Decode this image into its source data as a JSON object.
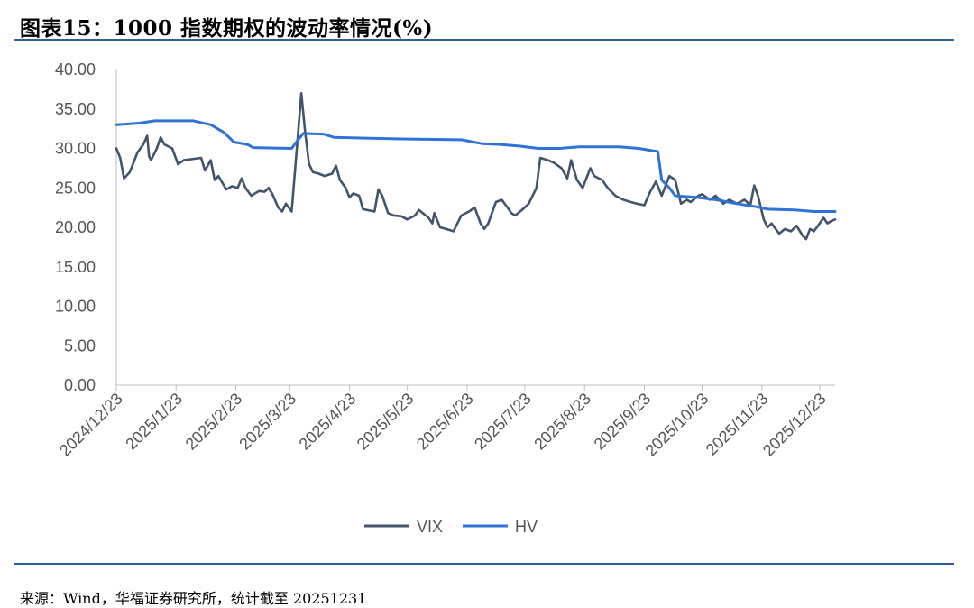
{
  "header": {
    "title": "图表15：1000 指数期权的波动率情况(%)"
  },
  "footer": {
    "source": "来源：Wind，华福证券研究所，统计截至 20251231"
  },
  "colors": {
    "vix": "#44546a",
    "hv": "#2f73d6",
    "rule": "#2e5f9e",
    "axis": "#bfbfbf",
    "tick_text": "#555555"
  },
  "chart_data": {
    "type": "line",
    "title": "图表15：1000 指数期权的波动率情况(%)",
    "xlabel": "",
    "ylabel": "",
    "ylim": [
      0,
      40
    ],
    "y_ticks": [
      "0.00",
      "5.00",
      "10.00",
      "15.00",
      "20.00",
      "25.00",
      "30.00",
      "35.00",
      "40.00"
    ],
    "x_ticks": [
      "2024/12/23",
      "2025/1/23",
      "2025/2/23",
      "2025/3/23",
      "2025/4/23",
      "2025/5/23",
      "2025/6/23",
      "2025/7/23",
      "2025/8/23",
      "2025/9/23",
      "2025/10/23",
      "2025/11/23",
      "2025/12/23"
    ],
    "x_range": [
      "2024/12/23",
      "2025/12/31"
    ],
    "grid": false,
    "legend": "bottom",
    "series": [
      {
        "name": "VIX",
        "points": [
          [
            "2024-12-23",
            30.0
          ],
          [
            "2024-12-25",
            28.8
          ],
          [
            "2024-12-27",
            26.2
          ],
          [
            "2024-12-30",
            27.0
          ],
          [
            "2025-01-03",
            29.5
          ],
          [
            "2025-01-06",
            30.5
          ],
          [
            "2025-01-08",
            31.6
          ],
          [
            "2025-01-09",
            29.0
          ],
          [
            "2025-01-10",
            28.5
          ],
          [
            "2025-01-13",
            30.0
          ],
          [
            "2025-01-15",
            31.4
          ],
          [
            "2025-01-17",
            30.5
          ],
          [
            "2025-01-21",
            30.0
          ],
          [
            "2025-01-24",
            28.0
          ],
          [
            "2025-01-27",
            28.5
          ],
          [
            "2025-02-05",
            28.8
          ],
          [
            "2025-02-07",
            27.2
          ],
          [
            "2025-02-10",
            28.5
          ],
          [
            "2025-02-12",
            26.0
          ],
          [
            "2025-02-14",
            26.5
          ],
          [
            "2025-02-18",
            24.8
          ],
          [
            "2025-02-21",
            25.2
          ],
          [
            "2025-02-24",
            25.0
          ],
          [
            "2025-02-26",
            26.2
          ],
          [
            "2025-02-28",
            25.0
          ],
          [
            "2025-03-03",
            24.0
          ],
          [
            "2025-03-05",
            24.3
          ],
          [
            "2025-03-07",
            24.6
          ],
          [
            "2025-03-10",
            24.5
          ],
          [
            "2025-03-12",
            25.0
          ],
          [
            "2025-03-14",
            24.2
          ],
          [
            "2025-03-17",
            22.5
          ],
          [
            "2025-03-19",
            22.0
          ],
          [
            "2025-03-21",
            23.0
          ],
          [
            "2025-03-24",
            22.0
          ],
          [
            "2025-03-26",
            28.0
          ],
          [
            "2025-03-28",
            34.0
          ],
          [
            "2025-03-29",
            37.0
          ],
          [
            "2025-03-31",
            32.0
          ],
          [
            "2025-04-02",
            28.0
          ],
          [
            "2025-04-04",
            27.0
          ],
          [
            "2025-04-07",
            26.8
          ],
          [
            "2025-04-10",
            26.5
          ],
          [
            "2025-04-14",
            26.8
          ],
          [
            "2025-04-16",
            27.8
          ],
          [
            "2025-04-18",
            26.0
          ],
          [
            "2025-04-21",
            25.0
          ],
          [
            "2025-04-23",
            23.8
          ],
          [
            "2025-04-25",
            24.3
          ],
          [
            "2025-04-28",
            24.0
          ],
          [
            "2025-04-30",
            22.3
          ],
          [
            "2025-05-06",
            22.0
          ],
          [
            "2025-05-08",
            24.8
          ],
          [
            "2025-05-10",
            24.0
          ],
          [
            "2025-05-13",
            21.8
          ],
          [
            "2025-05-16",
            21.5
          ],
          [
            "2025-05-20",
            21.4
          ],
          [
            "2025-05-23",
            21.0
          ],
          [
            "2025-05-27",
            21.5
          ],
          [
            "2025-05-29",
            22.2
          ],
          [
            "2025-06-03",
            21.2
          ],
          [
            "2025-06-05",
            20.5
          ],
          [
            "2025-06-06",
            21.8
          ],
          [
            "2025-06-09",
            20.0
          ],
          [
            "2025-06-12",
            19.8
          ],
          [
            "2025-06-16",
            19.5
          ],
          [
            "2025-06-18",
            20.5
          ],
          [
            "2025-06-20",
            21.5
          ],
          [
            "2025-06-24",
            22.0
          ],
          [
            "2025-06-27",
            22.5
          ],
          [
            "2025-06-30",
            20.5
          ],
          [
            "2025-07-02",
            19.8
          ],
          [
            "2025-07-04",
            20.5
          ],
          [
            "2025-07-08",
            23.2
          ],
          [
            "2025-07-11",
            23.5
          ],
          [
            "2025-07-14",
            22.5
          ],
          [
            "2025-07-16",
            21.8
          ],
          [
            "2025-07-18",
            21.5
          ],
          [
            "2025-07-22",
            22.3
          ],
          [
            "2025-07-25",
            23.0
          ],
          [
            "2025-07-29",
            25.0
          ],
          [
            "2025-07-31",
            28.8
          ],
          [
            "2025-08-04",
            28.5
          ],
          [
            "2025-08-07",
            28.2
          ],
          [
            "2025-08-11",
            27.5
          ],
          [
            "2025-08-14",
            26.2
          ],
          [
            "2025-08-16",
            28.5
          ],
          [
            "2025-08-19",
            26.0
          ],
          [
            "2025-08-22",
            25.0
          ],
          [
            "2025-08-26",
            27.5
          ],
          [
            "2025-08-28",
            26.5
          ],
          [
            "2025-09-01",
            26.0
          ],
          [
            "2025-09-04",
            25.0
          ],
          [
            "2025-09-08",
            24.0
          ],
          [
            "2025-09-12",
            23.5
          ],
          [
            "2025-09-16",
            23.2
          ],
          [
            "2025-09-19",
            23.0
          ],
          [
            "2025-09-23",
            22.8
          ],
          [
            "2025-09-26",
            24.5
          ],
          [
            "2025-09-29",
            25.8
          ],
          [
            "2025-10-02",
            24.0
          ],
          [
            "2025-10-06",
            26.5
          ],
          [
            "2025-10-09",
            26.0
          ],
          [
            "2025-10-12",
            23.0
          ],
          [
            "2025-10-15",
            23.5
          ],
          [
            "2025-10-17",
            23.2
          ],
          [
            "2025-10-21",
            24.0
          ],
          [
            "2025-10-23",
            24.2
          ],
          [
            "2025-10-27",
            23.5
          ],
          [
            "2025-10-30",
            24.0
          ],
          [
            "2025-11-03",
            23.0
          ],
          [
            "2025-11-06",
            23.5
          ],
          [
            "2025-11-10",
            23.0
          ],
          [
            "2025-11-14",
            23.5
          ],
          [
            "2025-11-17",
            22.8
          ],
          [
            "2025-11-19",
            25.3
          ],
          [
            "2025-11-21",
            24.0
          ],
          [
            "2025-11-24",
            21.0
          ],
          [
            "2025-11-26",
            20.0
          ],
          [
            "2025-11-28",
            20.5
          ],
          [
            "2025-12-02",
            19.2
          ],
          [
            "2025-12-05",
            19.8
          ],
          [
            "2025-12-08",
            19.5
          ],
          [
            "2025-12-11",
            20.2
          ],
          [
            "2025-12-14",
            19.0
          ],
          [
            "2025-12-16",
            18.5
          ],
          [
            "2025-12-18",
            19.8
          ],
          [
            "2025-12-20",
            19.5
          ],
          [
            "2025-12-23",
            20.5
          ],
          [
            "2025-12-25",
            21.2
          ],
          [
            "2025-12-27",
            20.5
          ],
          [
            "2025-12-29",
            20.8
          ],
          [
            "2025-12-31",
            21.0
          ]
        ]
      },
      {
        "name": "HV",
        "points": [
          [
            "2024-12-23",
            33.0
          ],
          [
            "2025-01-04",
            33.2
          ],
          [
            "2025-01-12",
            33.5
          ],
          [
            "2025-02-01",
            33.5
          ],
          [
            "2025-02-10",
            33.0
          ],
          [
            "2025-02-17",
            32.0
          ],
          [
            "2025-02-22",
            30.8
          ],
          [
            "2025-03-01",
            30.5
          ],
          [
            "2025-03-04",
            30.1
          ],
          [
            "2025-03-24",
            30.0
          ],
          [
            "2025-03-27",
            31.0
          ],
          [
            "2025-03-30",
            31.9
          ],
          [
            "2025-04-10",
            31.8
          ],
          [
            "2025-04-15",
            31.4
          ],
          [
            "2025-05-01",
            31.3
          ],
          [
            "2025-05-20",
            31.2
          ],
          [
            "2025-06-20",
            31.1
          ],
          [
            "2025-07-01",
            30.6
          ],
          [
            "2025-07-10",
            30.5
          ],
          [
            "2025-07-20",
            30.3
          ],
          [
            "2025-07-30",
            30.0
          ],
          [
            "2025-08-10",
            30.0
          ],
          [
            "2025-08-20",
            30.2
          ],
          [
            "2025-09-10",
            30.2
          ],
          [
            "2025-09-20",
            30.0
          ],
          [
            "2025-09-30",
            29.6
          ],
          [
            "2025-10-02",
            26.0
          ],
          [
            "2025-10-06",
            25.0
          ],
          [
            "2025-10-09",
            24.0
          ],
          [
            "2025-10-20",
            23.8
          ],
          [
            "2025-10-30",
            23.5
          ],
          [
            "2025-11-10",
            23.0
          ],
          [
            "2025-11-20",
            22.6
          ],
          [
            "2025-11-26",
            22.3
          ],
          [
            "2025-12-10",
            22.2
          ],
          [
            "2025-12-20",
            22.0
          ],
          [
            "2025-12-31",
            22.0
          ]
        ]
      }
    ]
  }
}
